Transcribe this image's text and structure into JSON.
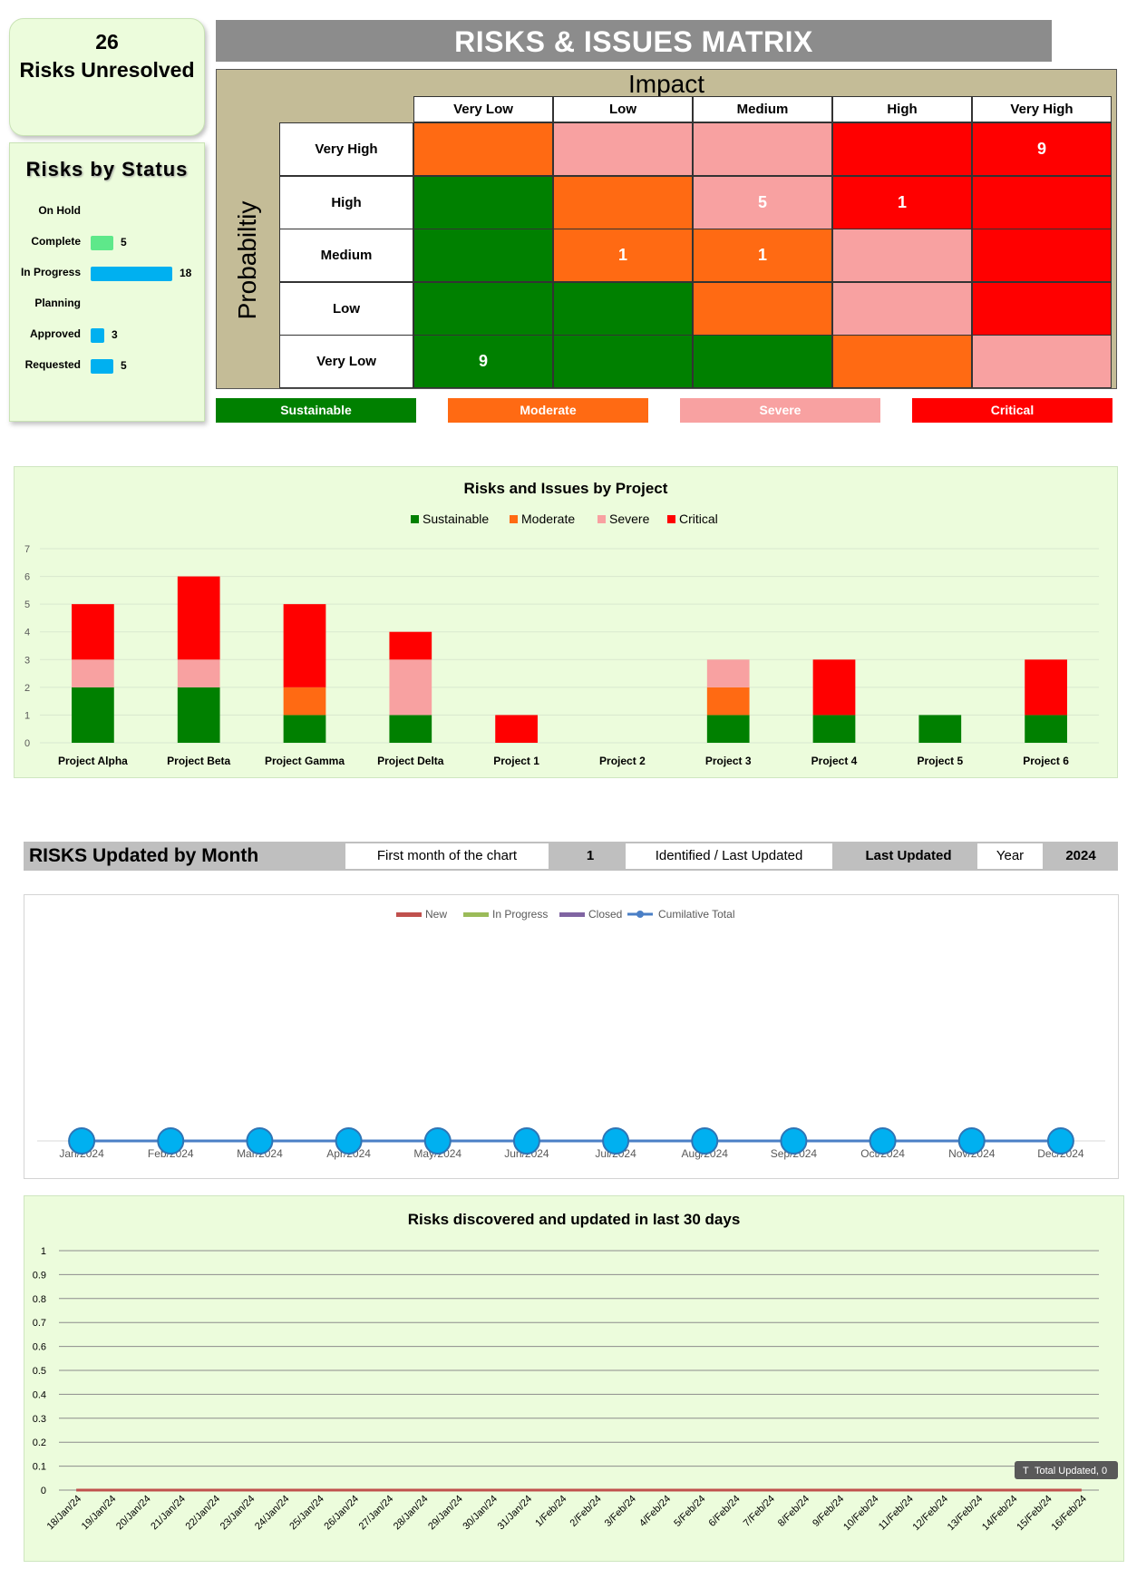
{
  "kpi": {
    "count": "26",
    "label": "Risks Unresolved"
  },
  "status": {
    "title": "Risks by Status",
    "items": [
      {
        "label": "On Hold",
        "value": null,
        "color": "#00b0f0"
      },
      {
        "label": "Complete",
        "value": 5,
        "color": "#5ee88a"
      },
      {
        "label": "In Progress",
        "value": 18,
        "color": "#00b0f0"
      },
      {
        "label": "Planning",
        "value": null,
        "color": "#00b0f0"
      },
      {
        "label": "Approved",
        "value": 3,
        "color": "#00b0f0"
      },
      {
        "label": "Requested",
        "value": 5,
        "color": "#00b0f0"
      }
    ]
  },
  "matrix": {
    "title": "RISKS & ISSUES MATRIX",
    "impact_label": "Impact",
    "probability_label": "Probabiltiy",
    "impact_levels": [
      "Very Low",
      "Low",
      "Medium",
      "High",
      "Very High"
    ],
    "probability_levels": [
      "Very High",
      "High",
      "Medium",
      "Low",
      "Very Low"
    ],
    "severity_colors": {
      "sustainable": "#008000",
      "moderate": "#ff6a13",
      "severe": "#f8a1a1",
      "critical": "#ff0000"
    },
    "cells": [
      [
        {
          "sev": "moderate",
          "value": ""
        },
        {
          "sev": "severe",
          "value": ""
        },
        {
          "sev": "severe",
          "value": ""
        },
        {
          "sev": "critical",
          "value": ""
        },
        {
          "sev": "critical",
          "value": "9"
        }
      ],
      [
        {
          "sev": "sustainable",
          "value": ""
        },
        {
          "sev": "moderate",
          "value": ""
        },
        {
          "sev": "severe",
          "value": "5"
        },
        {
          "sev": "critical",
          "value": "1"
        },
        {
          "sev": "critical",
          "value": ""
        }
      ],
      [
        {
          "sev": "sustainable",
          "value": ""
        },
        {
          "sev": "moderate",
          "value": "1"
        },
        {
          "sev": "moderate",
          "value": "1"
        },
        {
          "sev": "severe",
          "value": ""
        },
        {
          "sev": "critical",
          "value": ""
        }
      ],
      [
        {
          "sev": "sustainable",
          "value": ""
        },
        {
          "sev": "sustainable",
          "value": ""
        },
        {
          "sev": "moderate",
          "value": ""
        },
        {
          "sev": "severe",
          "value": ""
        },
        {
          "sev": "critical",
          "value": ""
        }
      ],
      [
        {
          "sev": "sustainable",
          "value": "9"
        },
        {
          "sev": "sustainable",
          "value": ""
        },
        {
          "sev": "sustainable",
          "value": ""
        },
        {
          "sev": "moderate",
          "value": ""
        },
        {
          "sev": "severe",
          "value": ""
        }
      ]
    ],
    "legend": [
      {
        "label": "Sustainable",
        "color": "#008000"
      },
      {
        "label": "Moderate",
        "color": "#ff6a13"
      },
      {
        "label": "Severe",
        "color": "#f8a1a1"
      },
      {
        "label": "Critical",
        "color": "#ff0000"
      }
    ]
  },
  "month_section": {
    "title": "RISKS Updated by Month",
    "first_month_label": "First month of the chart",
    "first_month_value": "1",
    "mode_value": "Identified / Last Updated",
    "mode_label": "Last Updated",
    "year_label": "Year",
    "year_value": "2024"
  },
  "chart_data": [
    {
      "type": "bar",
      "stacked": true,
      "title": "Risks and Issues by Project",
      "categories": [
        "Project Alpha",
        "Project Beta",
        "Project Gamma",
        "Project Delta",
        "Project 1",
        "Project 2",
        "Project 3",
        "Project 4",
        "Project 5",
        "Project 6"
      ],
      "series": [
        {
          "name": "Sustainable",
          "color": "#008000",
          "values": [
            2,
            2,
            1,
            1,
            0,
            0,
            1,
            1,
            1,
            1
          ]
        },
        {
          "name": "Moderate",
          "color": "#ff6a13",
          "values": [
            0,
            0,
            1,
            0,
            0,
            0,
            1,
            0,
            0,
            0
          ]
        },
        {
          "name": "Severe",
          "color": "#f8a1a1",
          "values": [
            1,
            1,
            0,
            2,
            0,
            0,
            1,
            0,
            0,
            0
          ]
        },
        {
          "name": "Critical",
          "color": "#ff0000",
          "values": [
            2,
            3,
            3,
            1,
            1,
            0,
            0,
            2,
            0,
            2
          ]
        }
      ],
      "ylim": [
        0,
        7
      ],
      "yticks": [
        0,
        1,
        2,
        3,
        4,
        5,
        6,
        7
      ],
      "legend": "top",
      "grid": true
    },
    {
      "type": "line",
      "title": "",
      "categories": [
        "Jan/2024",
        "Feb/2024",
        "Mar/2024",
        "Apr/2024",
        "May/2024",
        "Jun/2024",
        "Jul/2024",
        "Aug/2024",
        "Sep/2024",
        "Oct/2024",
        "Nov/2024",
        "Dec/2024"
      ],
      "series": [
        {
          "name": "New",
          "color": "#c0504d",
          "values": [
            0,
            0,
            0,
            0,
            0,
            0,
            0,
            0,
            0,
            0,
            0,
            0
          ]
        },
        {
          "name": "In Progress",
          "color": "#9bbb59",
          "values": [
            0,
            0,
            0,
            0,
            0,
            0,
            0,
            0,
            0,
            0,
            0,
            0
          ]
        },
        {
          "name": "Closed",
          "color": "#8064a2",
          "values": [
            0,
            0,
            0,
            0,
            0,
            0,
            0,
            0,
            0,
            0,
            0,
            0
          ]
        },
        {
          "name": "Cumilative Total",
          "color": "#4a7fc6",
          "marker": "circle",
          "values": [
            0,
            0,
            0,
            0,
            0,
            0,
            0,
            0,
            0,
            0,
            0,
            0
          ]
        }
      ],
      "legend": "top",
      "grid": false
    },
    {
      "type": "line",
      "title": "Risks discovered and updated in last 30 days",
      "categories": [
        "18/Jan/24",
        "19/Jan/24",
        "20/Jan/24",
        "21/Jan/24",
        "22/Jan/24",
        "23/Jan/24",
        "24/Jan/24",
        "25/Jan/24",
        "26/Jan/24",
        "27/Jan/24",
        "28/Jan/24",
        "29/Jan/24",
        "30/Jan/24",
        "31/Jan/24",
        "1/Feb/24",
        "2/Feb/24",
        "3/Feb/24",
        "4/Feb/24",
        "5/Feb/24",
        "6/Feb/24",
        "7/Feb/24",
        "8/Feb/24",
        "9/Feb/24",
        "10/Feb/24",
        "11/Feb/24",
        "12/Feb/24",
        "13/Feb/24",
        "14/Feb/24",
        "15/Feb/24",
        "16/Feb/24"
      ],
      "series": [
        {
          "name": "Total Updated",
          "color": "#c0504d",
          "values": [
            0,
            0,
            0,
            0,
            0,
            0,
            0,
            0,
            0,
            0,
            0,
            0,
            0,
            0,
            0,
            0,
            0,
            0,
            0,
            0,
            0,
            0,
            0,
            0,
            0,
            0,
            0,
            0,
            0,
            0
          ]
        }
      ],
      "ylim": [
        0,
        1
      ],
      "yticks": [
        0,
        0.1,
        0.2,
        0.3,
        0.4,
        0.5,
        0.6,
        0.7,
        0.8,
        0.9,
        1
      ],
      "grid": true,
      "tooltip": "Total Updated, 0",
      "tooltip_prefix": "T"
    }
  ]
}
